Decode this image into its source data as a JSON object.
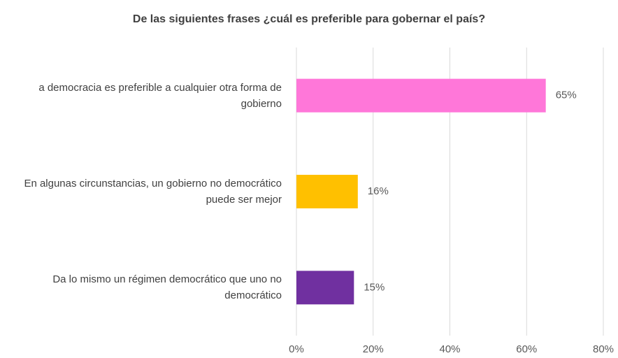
{
  "chart_data": {
    "type": "barh",
    "title": "De las siguientes frases ¿cuál es preferible para gobernar el país?",
    "categories": [
      "a democracia es preferible a cualquier otra forma de gobierno",
      "En algunas circunstancias, un gobierno no democrático puede ser mejor",
      "Da lo mismo un régimen democrático que uno no democrático"
    ],
    "values": [
      65,
      16,
      15
    ],
    "value_labels": [
      "65%",
      "16%",
      "15%"
    ],
    "colors": [
      "#ff77d9",
      "#ffc000",
      "#7030a0"
    ],
    "xlim": [
      0,
      80
    ],
    "xticks": [
      {
        "value": 0,
        "label": "0%"
      },
      {
        "value": 20,
        "label": "20%"
      },
      {
        "value": 40,
        "label": "40%"
      },
      {
        "value": 60,
        "label": "60%"
      },
      {
        "value": 80,
        "label": "80%"
      }
    ],
    "grid": true
  }
}
